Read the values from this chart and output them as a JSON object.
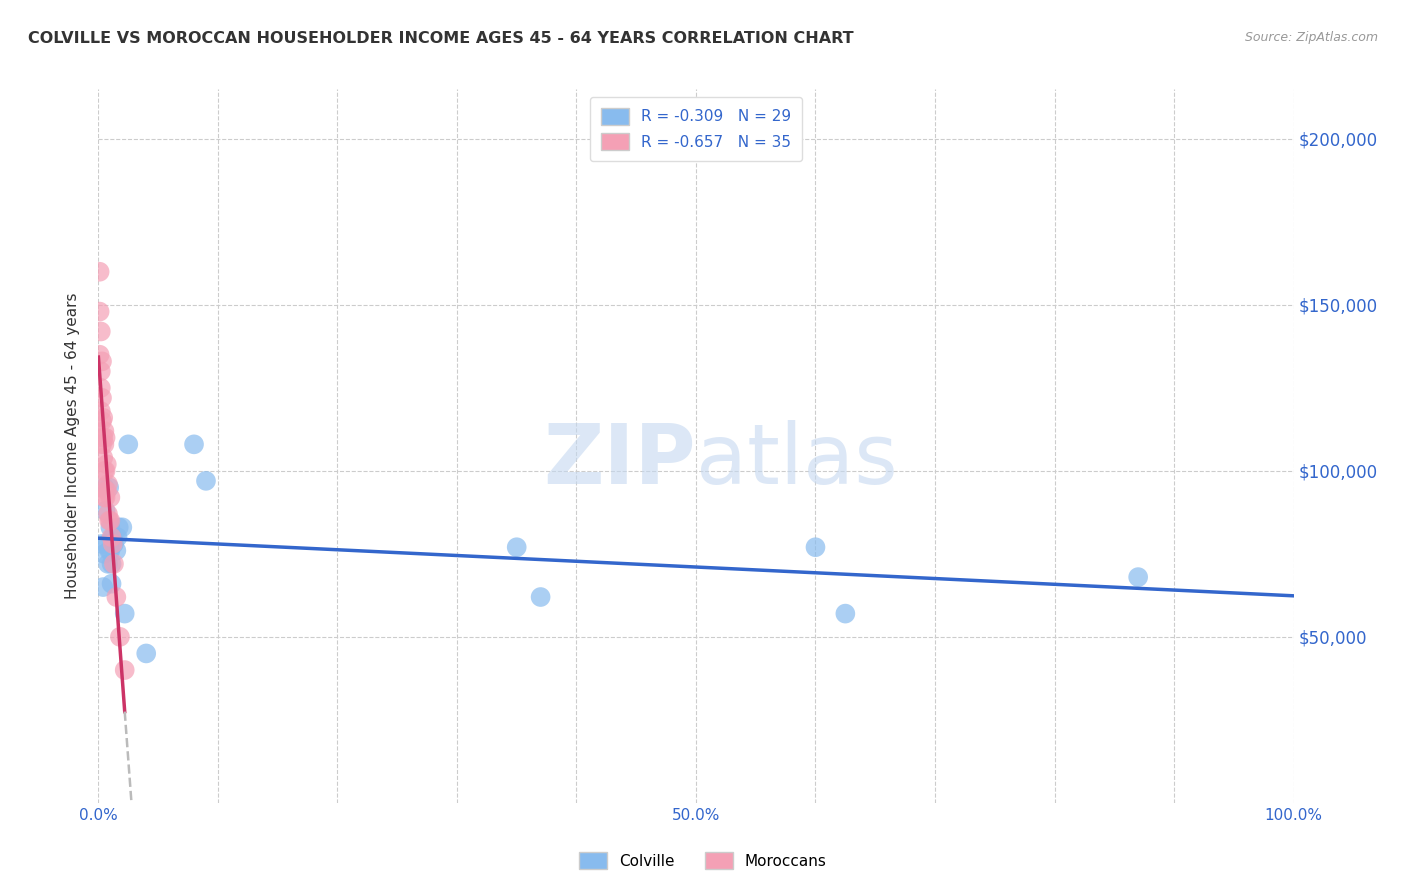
{
  "title": "COLVILLE VS MOROCCAN HOUSEHOLDER INCOME AGES 45 - 64 YEARS CORRELATION CHART",
  "source": "Source: ZipAtlas.com",
  "ylabel": "Householder Income Ages 45 - 64 years",
  "ytick_labels": [
    "$50,000",
    "$100,000",
    "$150,000",
    "$200,000"
  ],
  "ytick_values": [
    50000,
    100000,
    150000,
    200000
  ],
  "colville_R": -0.309,
  "colville_N": 29,
  "moroccan_R": -0.657,
  "moroccan_N": 35,
  "colville_color": "#88bbee",
  "moroccan_color": "#f4a0b5",
  "colville_line_color": "#3366cc",
  "moroccan_line_color": "#cc3366",
  "moroccan_line_dashed_color": "#bbbbbb",
  "watermark_color": "#c5d8f0",
  "colville_x": [
    0.003,
    0.004,
    0.005,
    0.005,
    0.006,
    0.007,
    0.008,
    0.009,
    0.009,
    0.01,
    0.01,
    0.011,
    0.011,
    0.012,
    0.013,
    0.015,
    0.016,
    0.017,
    0.02,
    0.022,
    0.025,
    0.04,
    0.08,
    0.09,
    0.35,
    0.37,
    0.6,
    0.625,
    0.87
  ],
  "colville_y": [
    78000,
    65000,
    95000,
    75000,
    88000,
    78000,
    72000,
    76000,
    95000,
    83000,
    76000,
    72000,
    66000,
    80000,
    78000,
    76000,
    80000,
    83000,
    83000,
    57000,
    108000,
    45000,
    108000,
    97000,
    77000,
    62000,
    77000,
    57000,
    68000
  ],
  "moroccan_x": [
    0.001,
    0.001,
    0.001,
    0.002,
    0.002,
    0.002,
    0.002,
    0.003,
    0.003,
    0.003,
    0.003,
    0.004,
    0.004,
    0.004,
    0.004,
    0.005,
    0.005,
    0.005,
    0.005,
    0.006,
    0.006,
    0.006,
    0.007,
    0.007,
    0.008,
    0.008,
    0.009,
    0.01,
    0.01,
    0.011,
    0.012,
    0.013,
    0.015,
    0.018,
    0.022
  ],
  "moroccan_y": [
    160000,
    148000,
    135000,
    142000,
    130000,
    125000,
    118000,
    133000,
    122000,
    115000,
    108000,
    116000,
    110000,
    104000,
    95000,
    112000,
    108000,
    100000,
    92000,
    110000,
    100000,
    92000,
    102000,
    94000,
    96000,
    87000,
    85000,
    92000,
    85000,
    80000,
    78000,
    72000,
    62000,
    50000,
    40000
  ],
  "xlim": [
    0.0,
    1.0
  ],
  "ylim": [
    0,
    215000
  ],
  "fig_bg": "#ffffff",
  "plot_bg": "#ffffff"
}
